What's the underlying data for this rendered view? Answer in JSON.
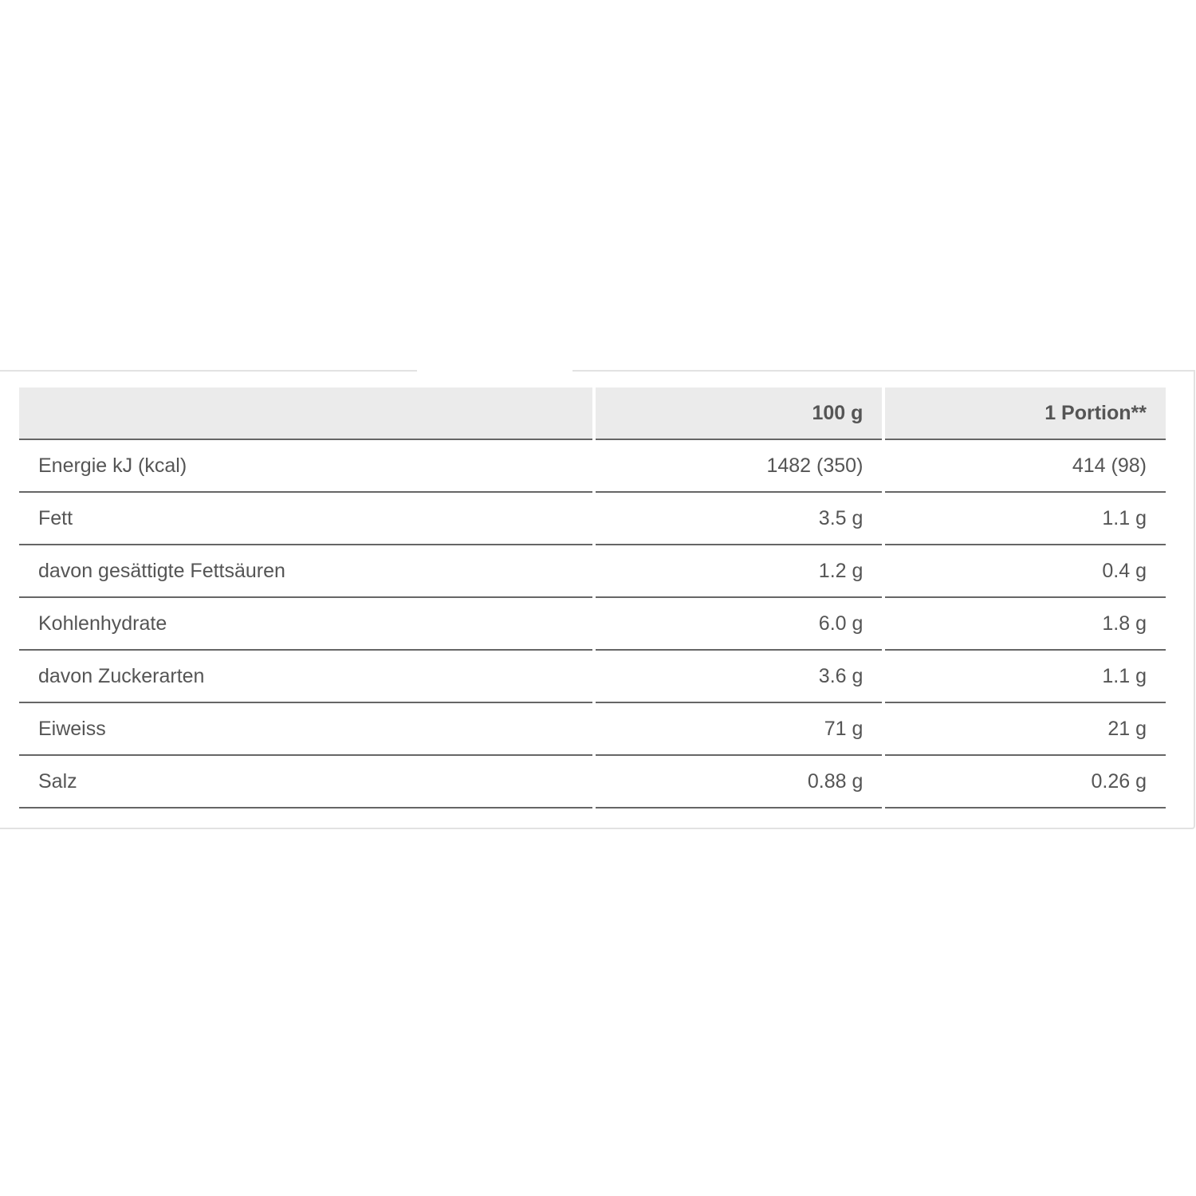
{
  "table": {
    "headers": [
      "",
      "100 g",
      "1 Portion**"
    ],
    "rows": [
      {
        "label": "Energie kJ (kcal)",
        "per100": "1482 (350)",
        "portion": "414 (98)"
      },
      {
        "label": "Fett",
        "per100": "3.5 g",
        "portion": "1.1 g"
      },
      {
        "label": "davon gesättigte Fettsäuren",
        "per100": "1.2 g",
        "portion": "0.4 g"
      },
      {
        "label": "Kohlenhydrate",
        "per100": "6.0 g",
        "portion": "1.8 g"
      },
      {
        "label": "davon Zuckerarten",
        "per100": "3.6 g",
        "portion": "1.1 g"
      },
      {
        "label": "Eiweiss",
        "per100": "71 g",
        "portion": "21 g"
      },
      {
        "label": "Salz",
        "per100": "0.88 g",
        "portion": "0.26 g"
      }
    ]
  }
}
